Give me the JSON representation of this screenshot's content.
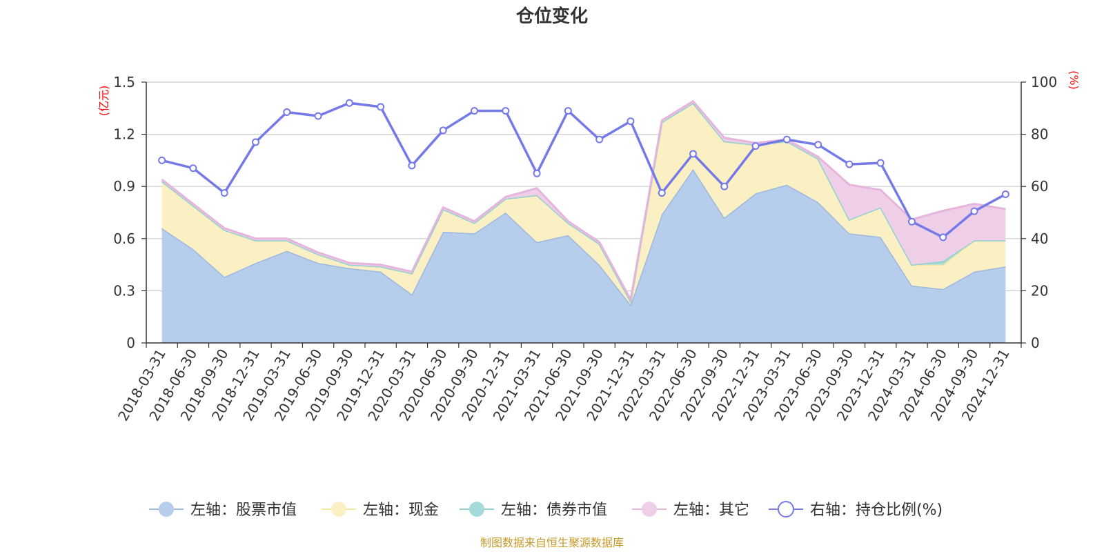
{
  "chart_data": {
    "type": "area",
    "title": "仓位变化",
    "source_note": "制图数据来自恒生聚源数据库",
    "left_unit": "(亿元)",
    "right_unit": "(%)",
    "ylim_left": [
      0,
      1.5
    ],
    "left_ticks": [
      "0",
      "0.3",
      "0.6",
      "0.9",
      "1.2",
      "1.5"
    ],
    "ylim_right": [
      0,
      100
    ],
    "right_ticks": [
      "0",
      "20",
      "40",
      "60",
      "80",
      "100"
    ],
    "categories": [
      "2018-03-31",
      "2018-06-30",
      "2018-09-30",
      "2018-12-31",
      "2019-03-31",
      "2019-06-30",
      "2019-09-30",
      "2019-12-31",
      "2020-03-31",
      "2020-06-30",
      "2020-09-30",
      "2020-12-31",
      "2021-03-31",
      "2021-06-30",
      "2021-09-30",
      "2021-12-31",
      "2022-03-31",
      "2022-06-30",
      "2022-09-30",
      "2022-12-31",
      "2023-03-31",
      "2023-06-30",
      "2023-09-30",
      "2023-12-31",
      "2024-03-31",
      "2024-06-30",
      "2024-09-30",
      "2024-12-31"
    ],
    "series": [
      {
        "name": "左轴：股票市值",
        "axis": "left",
        "color": "#9db8e0",
        "fill": "#b6cdeb",
        "values": [
          0.66,
          0.54,
          0.38,
          0.46,
          0.53,
          0.46,
          0.43,
          0.41,
          0.28,
          0.64,
          0.63,
          0.75,
          0.58,
          0.62,
          0.45,
          0.22,
          0.74,
          1.0,
          0.72,
          0.86,
          0.91,
          0.81,
          0.63,
          0.61,
          0.33,
          0.31,
          0.41,
          0.44
        ]
      },
      {
        "name": "左轴：现金",
        "axis": "left",
        "color": "#f7e7a4",
        "fill": "#fbefc4",
        "values": [
          0.27,
          0.25,
          0.27,
          0.13,
          0.06,
          0.05,
          0.02,
          0.03,
          0.12,
          0.13,
          0.06,
          0.08,
          0.27,
          0.07,
          0.12,
          0.02,
          0.53,
          0.38,
          0.44,
          0.28,
          0.25,
          0.25,
          0.08,
          0.17,
          0.12,
          0.14,
          0.18,
          0.15
        ]
      },
      {
        "name": "左轴：债券市值",
        "axis": "left",
        "color": "#8fd0d0",
        "fill": "#a6dada",
        "values": [
          0,
          0,
          0,
          0,
          0,
          0,
          0,
          0,
          0,
          0,
          0,
          0,
          0,
          0,
          0,
          0,
          0,
          0,
          0,
          0,
          0,
          0,
          0,
          0,
          0,
          0.02,
          0,
          0
        ]
      },
      {
        "name": "左轴：其它",
        "axis": "left",
        "color": "#e6b5dc",
        "fill": "#efcfe7",
        "values": [
          0.01,
          0.01,
          0.01,
          0.01,
          0.01,
          0.01,
          0.01,
          0.01,
          0.01,
          0.01,
          0.01,
          0.01,
          0.04,
          0.01,
          0.01,
          0.01,
          0.01,
          0.01,
          0.02,
          0.01,
          0.01,
          0.01,
          0.2,
          0.1,
          0.26,
          0.29,
          0.21,
          0.18
        ]
      },
      {
        "name": "右轴：持仓比例(%)",
        "axis": "right",
        "color": "#7479e8",
        "values": [
          70,
          67,
          57.5,
          77,
          88.5,
          87,
          92,
          90.5,
          68,
          81.5,
          89,
          89,
          65,
          89,
          78,
          85,
          57.5,
          72.5,
          60,
          75.5,
          78,
          76,
          68.5,
          69,
          46.5,
          40.5,
          50.5,
          57
        ]
      }
    ],
    "legend_position": "bottom-center",
    "grid": true
  }
}
